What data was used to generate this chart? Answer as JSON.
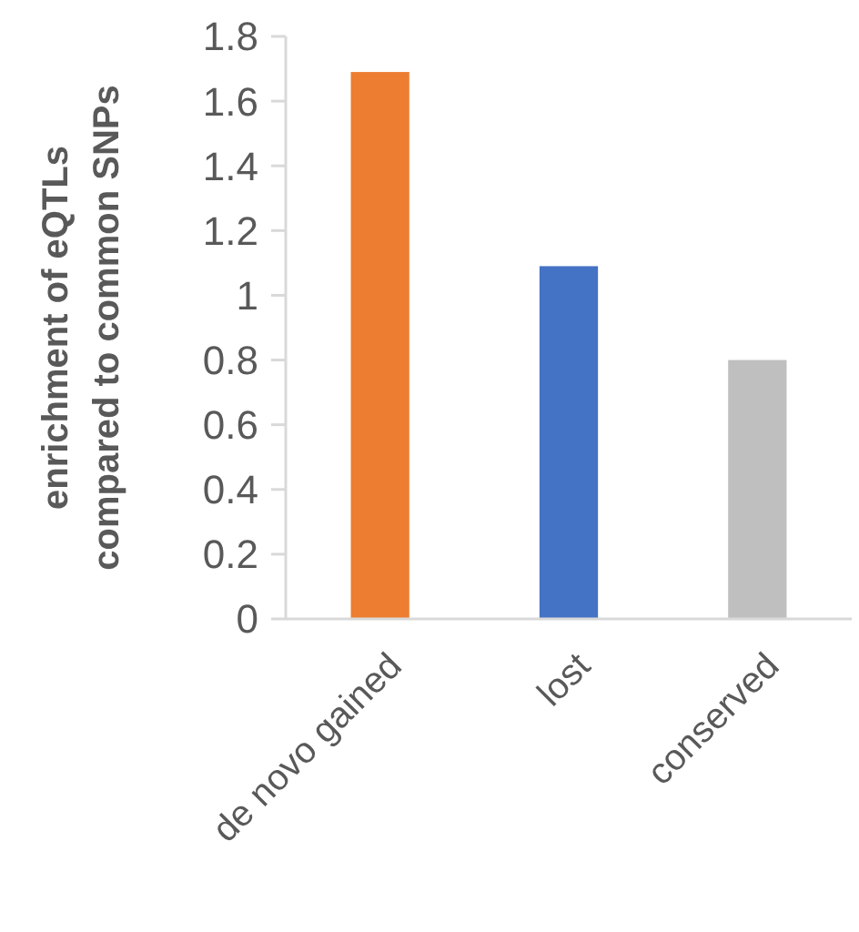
{
  "chart_data": {
    "type": "bar",
    "ylabel": "enrichment of eQTLs compared to common SNPs",
    "categories": [
      "de novo gained",
      "lost",
      "conserved"
    ],
    "values": [
      1.69,
      1.09,
      0.8
    ],
    "colors": [
      "#ed7d31",
      "#4472c4",
      "#bfbfbf"
    ],
    "ylim": [
      0,
      1.8
    ],
    "yticks": [
      0,
      0.2,
      0.4,
      0.6,
      0.8,
      1,
      1.2,
      1.4,
      1.6,
      1.8
    ],
    "grid": false
  }
}
